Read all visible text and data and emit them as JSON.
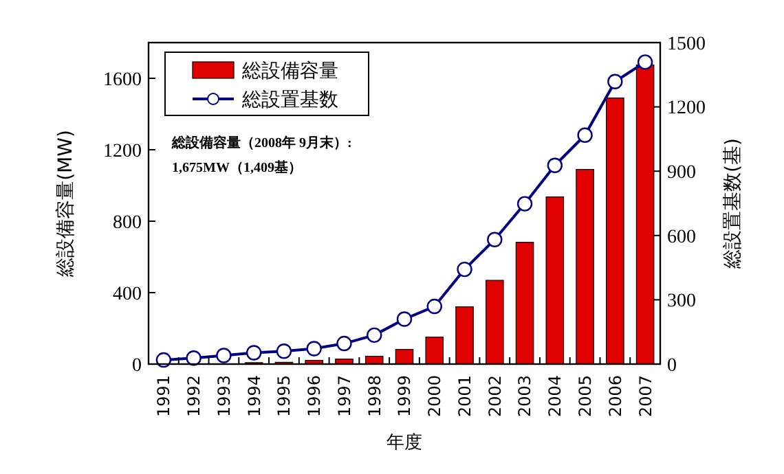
{
  "chart_data": {
    "type": "bar",
    "xlabel": "年度",
    "ylabel": "総設備容量(MW)",
    "y2label": "総設置基数(基)",
    "categories": [
      "1991",
      "1992",
      "1993",
      "1994",
      "1995",
      "1996",
      "1997",
      "1998",
      "1999",
      "2000",
      "2001",
      "2002",
      "2003",
      "2004",
      "2005",
      "2006",
      "2007"
    ],
    "series": [
      {
        "name": "総設備容量",
        "color": "#e00000",
        "values": [
          null,
          null,
          null,
          8,
          10,
          21,
          28,
          44,
          82,
          151,
          321,
          469,
          682,
          936,
          1090,
          1490,
          1675
        ]
      },
      {
        "name": "総設置基数",
        "type": "line",
        "axis": "y2",
        "color": "#000080",
        "marker": "circle",
        "values": [
          19,
          28,
          40,
          53,
          60,
          72,
          96,
          135,
          210,
          269,
          442,
          581,
          748,
          927,
          1068,
          1318,
          1409
        ]
      }
    ],
    "ylim": [
      0,
      1800
    ],
    "yticks": [
      0,
      400,
      800,
      1200,
      1600
    ],
    "y2lim": [
      0,
      1500
    ],
    "y2ticks": [
      0,
      300,
      600,
      900,
      1200,
      1500
    ],
    "legend": "top left",
    "grid": false,
    "annotations": [
      "総設備容量（2008年 9月末）:",
      "1,675MW（1,409基）"
    ]
  }
}
